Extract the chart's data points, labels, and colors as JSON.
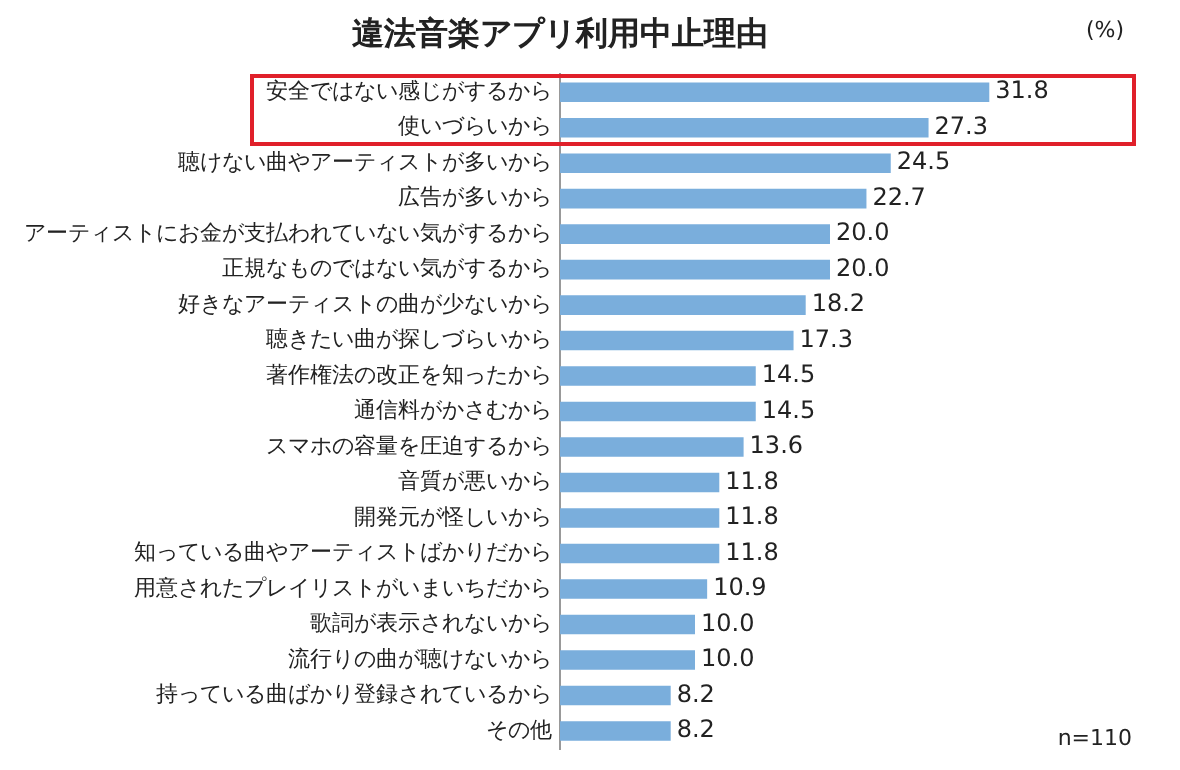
{
  "chart_data": {
    "type": "bar",
    "orientation": "horizontal",
    "title": "違法音楽アプリ利用中止理由",
    "categories": [
      "安全ではない感じがするから",
      "使いづらいから",
      "聴けない曲やアーティストが多いから",
      "広告が多いから",
      "アーティストにお金が支払われていない気がするから",
      "正規なものではない気がするから",
      "好きなアーティストの曲が少ないから",
      "聴きたい曲が探しづらいから",
      "著作権法の改正を知ったから",
      "通信料がかさむから",
      "スマホの容量を圧迫するから",
      "音質が悪いから",
      "開発元が怪しいから",
      "知っている曲やアーティストばかりだから",
      "用意されたプレイリストがいまいちだから",
      "歌詞が表示されないから",
      "流行りの曲が聴けないから",
      "持っている曲ばかり登録されているから",
      "その他"
    ],
    "values": [
      31.8,
      27.3,
      24.5,
      22.7,
      20.0,
      20.0,
      18.2,
      17.3,
      14.5,
      14.5,
      13.6,
      11.8,
      11.8,
      11.8,
      10.9,
      10.0,
      10.0,
      8.2,
      8.2
    ],
    "value_labels": [
      "31.8",
      "27.3",
      "24.5",
      "22.7",
      "20.0",
      "20.0",
      "18.2",
      "17.3",
      "14.5",
      "14.5",
      "13.6",
      "11.8",
      "11.8",
      "11.8",
      "10.9",
      "10.0",
      "10.0",
      "8.2",
      "8.2"
    ],
    "color": "#7aaedc",
    "tick_labels": "y",
    "annotations": [
      "(%)",
      "n=110"
    ]
  }
}
